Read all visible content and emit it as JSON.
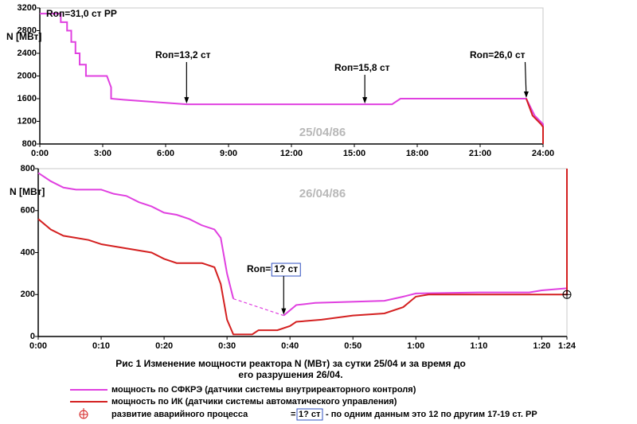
{
  "caption": [
    "Рис 1 Изменение мощности реактора N (МВт) за сутки 25/04 и за время до",
    "его разрушения 26/04."
  ],
  "legend_note": {
    "prefix": "=",
    "box": "1? ст",
    "text": "- по одним данным это 12 по другим 17-19 ст. РР"
  },
  "chart_data": [
    {
      "type": "line",
      "ylabel": "N [МВт]",
      "date": "25/04/86",
      "xlim": [
        0,
        24
      ],
      "ylim": [
        800,
        3200
      ],
      "xticks": [
        {
          "value": 0,
          "label": "0:00"
        },
        {
          "value": 3,
          "label": "3:00"
        },
        {
          "value": 6,
          "label": "6:00"
        },
        {
          "value": 9,
          "label": "9:00"
        },
        {
          "value": 12,
          "label": "12:00"
        },
        {
          "value": 15,
          "label": "15:00"
        },
        {
          "value": 18,
          "label": "18:00"
        },
        {
          "value": 21,
          "label": "21:00"
        },
        {
          "value": 24,
          "label": "24:00"
        }
      ],
      "yticks": [
        800,
        1200,
        1600,
        2000,
        2400,
        2800,
        3200
      ],
      "series": [
        {
          "color": "#e040e0",
          "x": [
            0,
            1.0,
            1.0,
            1.3,
            1.3,
            1.5,
            1.5,
            1.7,
            1.7,
            1.9,
            1.9,
            2.2,
            2.2,
            3.2,
            3.4,
            3.4,
            4,
            7,
            16.8,
            17.2,
            23.2,
            23.6,
            24,
            24
          ],
          "values": [
            3100,
            3100,
            2950,
            2950,
            2800,
            2800,
            2600,
            2600,
            2400,
            2400,
            2200,
            2200,
            2000,
            2000,
            1800,
            1600,
            1580,
            1500,
            1500,
            1600,
            1600,
            1300,
            1150,
            1100
          ]
        },
        {
          "color": "#d42020",
          "x": [
            23.2,
            23.5,
            23.9,
            24,
            24
          ],
          "values": [
            1600,
            1300,
            1150,
            1100,
            800
          ]
        }
      ],
      "annotations": [
        {
          "text": "Rоп=31,0 ст РР"
        },
        {
          "text": "Rоп=13,2 ст",
          "x": 7,
          "y": 1500
        },
        {
          "text": "Rоп=15,8 ст",
          "x": 15.5,
          "y": 1500
        },
        {
          "text": "Rоп=26,0 ст",
          "x": 23.2,
          "y": 1600
        }
      ]
    },
    {
      "type": "line",
      "ylabel": "N [МВт]",
      "date": "26/04/86",
      "xlim": [
        0,
        84
      ],
      "ylim": [
        0,
        800
      ],
      "xticks": [
        {
          "value": 0,
          "label": "0:00"
        },
        {
          "value": 10,
          "label": "0:10"
        },
        {
          "value": 20,
          "label": "0:20"
        },
        {
          "value": 30,
          "label": "0:30"
        },
        {
          "value": 40,
          "label": "0:40"
        },
        {
          "value": 50,
          "label": "0:50"
        },
        {
          "value": 60,
          "label": "1:00"
        },
        {
          "value": 70,
          "label": "1:10"
        },
        {
          "value": 80,
          "label": "1:20"
        },
        {
          "value": 84,
          "label": "1:24"
        }
      ],
      "yticks": [
        0,
        200,
        400,
        600,
        800
      ],
      "gap_style": "dashed",
      "series": [
        {
          "name": "мощность по СФКРЭ (датчики системы внутриреакторного контроля)",
          "color": "#e040e0",
          "x": [
            0,
            2,
            4,
            6,
            10,
            12,
            14,
            16,
            18,
            20,
            22,
            24,
            26,
            28,
            29,
            30,
            31,
            null,
            39,
            41,
            44,
            55,
            58,
            60,
            70,
            78,
            80,
            84
          ],
          "values": [
            780,
            740,
            710,
            700,
            700,
            680,
            670,
            640,
            620,
            590,
            580,
            560,
            530,
            510,
            470,
            300,
            180,
            null,
            100,
            150,
            160,
            170,
            190,
            205,
            210,
            210,
            220,
            230
          ]
        },
        {
          "name": "мощность по ИК (датчики системы автоматического управления)",
          "color": "#d42020",
          "x": [
            0,
            2,
            4,
            6,
            8,
            10,
            12,
            14,
            18,
            20,
            22,
            26,
            28,
            29,
            30,
            31,
            34,
            35,
            38,
            40,
            41,
            45,
            50,
            55,
            58,
            60,
            62,
            84,
            84
          ],
          "values": [
            560,
            510,
            480,
            470,
            460,
            440,
            430,
            420,
            400,
            370,
            350,
            350,
            330,
            250,
            80,
            10,
            10,
            30,
            30,
            50,
            70,
            80,
            100,
            110,
            140,
            190,
            200,
            200,
            800
          ]
        }
      ],
      "annotations": [
        {
          "text": "Rоп=",
          "box": "1? ст",
          "x": 39,
          "y": 100
        }
      ],
      "event": {
        "x": 84,
        "y": 200,
        "label": "развитие аварийного процесса"
      }
    }
  ]
}
